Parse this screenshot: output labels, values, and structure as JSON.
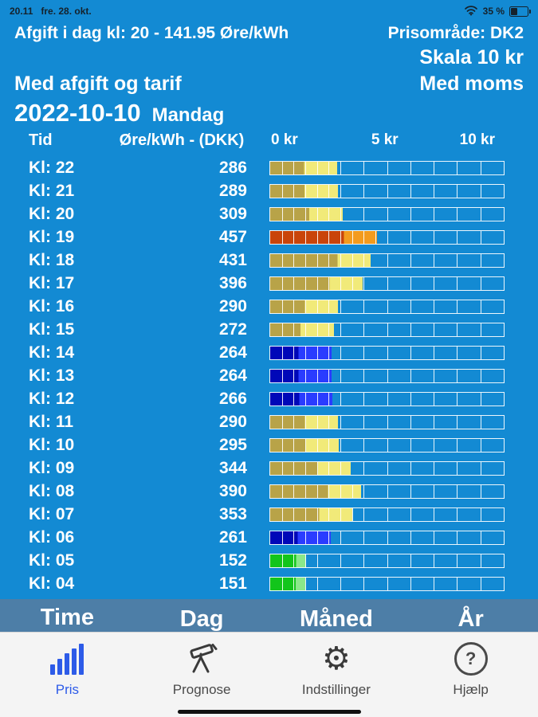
{
  "status_bar": {
    "time": "20.11",
    "date": "fre. 28. okt.",
    "battery_percent": "35 %"
  },
  "header": {
    "afgift_line": "Afgift i dag kl: 20 - 141.95 Øre/kWh",
    "price_area": "Prisområde: DK2",
    "scale_label": "Skala 10 kr",
    "tax_mode": "Med afgift og tarif",
    "vat_mode": "Med moms",
    "date": "2022-10-10",
    "weekday": "Mandag"
  },
  "table": {
    "col_time": "Tid",
    "col_price": "Øre/kWh - (DKK)"
  },
  "chart_data": {
    "type": "bar",
    "orientation": "horizontal",
    "title": "2022-10-10 Mandag",
    "unit": "Øre/kWh - (DKK)",
    "xlim": [
      0,
      10
    ],
    "x_ticks": [
      "0 kr",
      "5 kr",
      "10 kr"
    ],
    "scale_max_kr": 10,
    "grid": true,
    "rows": [
      {
        "hour": "Kl: 22",
        "value": "286",
        "kr": 2.86,
        "dark_kr": 1.44,
        "scheme": "yellow"
      },
      {
        "hour": "Kl: 21",
        "value": "289",
        "kr": 2.89,
        "dark_kr": 1.47,
        "scheme": "yellow"
      },
      {
        "hour": "Kl: 20",
        "value": "309",
        "kr": 3.09,
        "dark_kr": 1.67,
        "scheme": "yellow"
      },
      {
        "hour": "Kl: 19",
        "value": "457",
        "kr": 4.57,
        "dark_kr": 3.15,
        "scheme": "orange"
      },
      {
        "hour": "Kl: 18",
        "value": "431",
        "kr": 4.31,
        "dark_kr": 2.89,
        "scheme": "yellow"
      },
      {
        "hour": "Kl: 17",
        "value": "396",
        "kr": 3.96,
        "dark_kr": 2.54,
        "scheme": "yellow"
      },
      {
        "hour": "Kl: 16",
        "value": "290",
        "kr": 2.9,
        "dark_kr": 1.48,
        "scheme": "yellow"
      },
      {
        "hour": "Kl: 15",
        "value": "272",
        "kr": 2.72,
        "dark_kr": 1.3,
        "scheme": "yellow"
      },
      {
        "hour": "Kl: 14",
        "value": "264",
        "kr": 2.64,
        "dark_kr": 1.22,
        "scheme": "blue"
      },
      {
        "hour": "Kl: 13",
        "value": "264",
        "kr": 2.64,
        "dark_kr": 1.22,
        "scheme": "blue"
      },
      {
        "hour": "Kl: 12",
        "value": "266",
        "kr": 2.66,
        "dark_kr": 1.24,
        "scheme": "blue"
      },
      {
        "hour": "Kl: 11",
        "value": "290",
        "kr": 2.9,
        "dark_kr": 1.48,
        "scheme": "yellow"
      },
      {
        "hour": "Kl: 10",
        "value": "295",
        "kr": 2.95,
        "dark_kr": 1.53,
        "scheme": "yellow"
      },
      {
        "hour": "Kl: 09",
        "value": "344",
        "kr": 3.44,
        "dark_kr": 2.02,
        "scheme": "yellow"
      },
      {
        "hour": "Kl: 08",
        "value": "390",
        "kr": 3.9,
        "dark_kr": 2.48,
        "scheme": "yellow"
      },
      {
        "hour": "Kl: 07",
        "value": "353",
        "kr": 3.53,
        "dark_kr": 2.11,
        "scheme": "yellow"
      },
      {
        "hour": "Kl: 06",
        "value": "261",
        "kr": 2.61,
        "dark_kr": 1.19,
        "scheme": "blue"
      },
      {
        "hour": "Kl: 05",
        "value": "152",
        "kr": 1.52,
        "dark_kr": 1.1,
        "scheme": "green"
      },
      {
        "hour": "Kl: 04",
        "value": "151",
        "kr": 1.51,
        "dark_kr": 1.09,
        "scheme": "green"
      }
    ]
  },
  "colors": {
    "background": "#138ad3",
    "tab_bar": "#4d7ea7",
    "nav_active": "#2d5be8",
    "schemes": {
      "yellow": {
        "dark": "#b8a348",
        "light": "#f1ea79"
      },
      "orange": {
        "dark": "#c9440a",
        "light": "#f39b1d"
      },
      "blue": {
        "dark": "#0008b8",
        "light": "#2a3cff"
      },
      "green": {
        "dark": "#12c51b",
        "light": "#8ae88a"
      }
    }
  },
  "period_tabs": {
    "selected": "Time",
    "items": [
      "Time",
      "Dag",
      "Måned",
      "År"
    ]
  },
  "nav": {
    "items": [
      {
        "label": "Pris",
        "icon": "bar-chart-icon",
        "active": true
      },
      {
        "label": "Prognose",
        "icon": "telescope-icon",
        "active": false
      },
      {
        "label": "Indstillinger",
        "icon": "gear-icon",
        "active": false
      },
      {
        "label": "Hjælp",
        "icon": "help-icon",
        "active": false
      }
    ]
  }
}
